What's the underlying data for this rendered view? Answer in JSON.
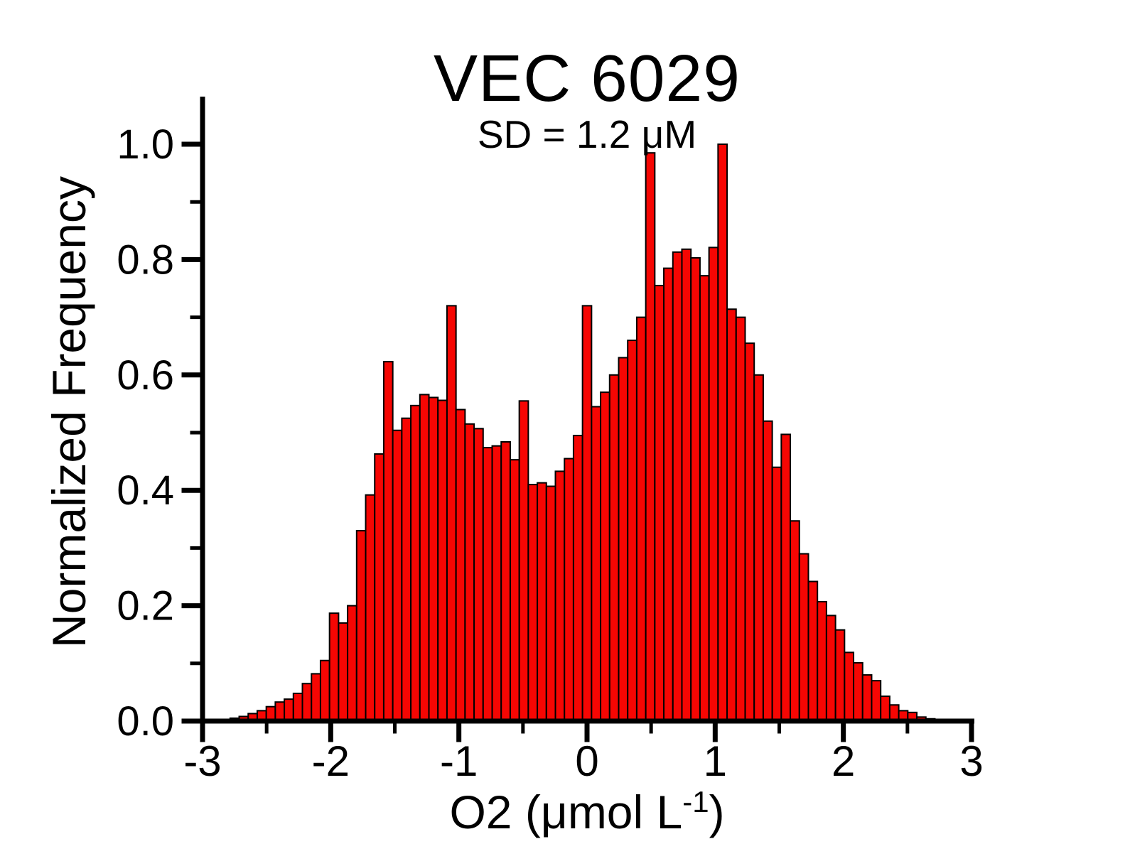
{
  "chart": {
    "title": "VEC 6029",
    "subtitle": "SD = 1.2 μM",
    "ylabel": "Normalized Frequency",
    "xlabel_main": "O2 (μmol L",
    "xlabel_sup": "-1",
    "xlabel_end": ")"
  },
  "chart_data": {
    "type": "bar",
    "subtype": "histogram",
    "title": "VEC 6029",
    "subtitle": "SD = 1.2 μM",
    "xlabel": "O2 (μmol L^-1)",
    "ylabel": "Normalized Frequency",
    "xlim": [
      -3,
      3
    ],
    "ylim": [
      0,
      1.0
    ],
    "grid": false,
    "legend": "none",
    "x_major_ticks": [
      -3,
      -2,
      -1,
      0,
      1,
      2,
      3
    ],
    "x_minor_ticks": [
      -2.5,
      -1.5,
      -0.5,
      0.5,
      1.5,
      2.5
    ],
    "y_major_ticks": [
      0,
      0.2,
      0.4,
      0.6,
      0.8,
      1.0
    ],
    "y_tick_labels": [
      "0.0",
      "0.2",
      "0.4",
      "0.6",
      "0.8",
      "1.0"
    ],
    "y_minor_ticks": [
      0.1,
      0.3,
      0.5,
      0.7,
      0.9
    ],
    "bar_color": "#f60603",
    "bar_edge_color": "#000000",
    "axis_color": "#000000",
    "bins": {
      "first_center": -2.82,
      "width": 0.0705,
      "count": 81
    },
    "values": [
      0.002,
      0.005,
      0.008,
      0.013,
      0.018,
      0.025,
      0.033,
      0.038,
      0.048,
      0.065,
      0.082,
      0.105,
      0.187,
      0.17,
      0.2,
      0.33,
      0.392,
      0.463,
      0.623,
      0.504,
      0.525,
      0.547,
      0.566,
      0.561,
      0.556,
      0.72,
      0.54,
      0.515,
      0.507,
      0.474,
      0.477,
      0.484,
      0.453,
      0.555,
      0.41,
      0.413,
      0.407,
      0.433,
      0.455,
      0.495,
      0.72,
      0.545,
      0.57,
      0.6,
      0.63,
      0.66,
      0.7,
      0.985,
      0.755,
      0.785,
      0.813,
      0.818,
      0.803,
      0.772,
      0.821,
      1.0,
      0.714,
      0.7,
      0.655,
      0.6,
      0.52,
      0.44,
      0.497,
      0.347,
      0.29,
      0.242,
      0.207,
      0.183,
      0.158,
      0.119,
      0.101,
      0.08,
      0.07,
      0.043,
      0.028,
      0.018,
      0.015,
      0.007,
      0.004,
      0.002,
      0.001
    ],
    "annotated_peaks": {
      "spike_positions": [
        -2.0,
        -1.55,
        -1.05,
        -0.49,
        0.0,
        0.49,
        1.05,
        1.55
      ],
      "spike_heights": [
        0.187,
        0.623,
        0.72,
        0.555,
        0.72,
        0.985,
        1.0,
        0.497
      ]
    }
  }
}
